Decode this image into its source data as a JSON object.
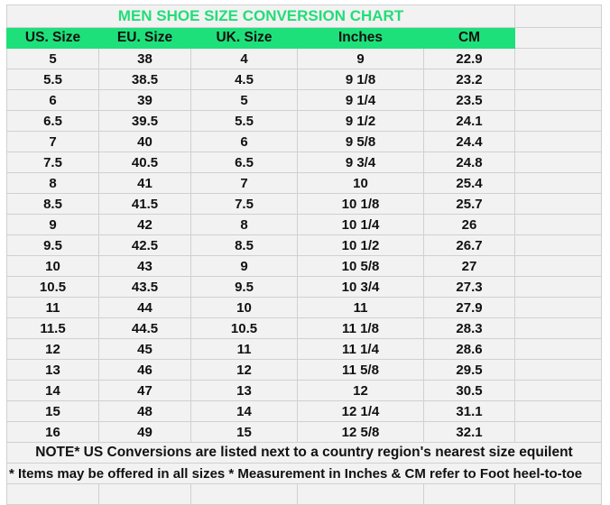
{
  "title": "MEN SHOE SIZE CONVERSION CHART",
  "colors": {
    "header_bg": "#1ee07a",
    "title_text": "#22dd77",
    "cell_bg": "#f2f2f2",
    "grid": "#d0d0d0"
  },
  "headers": [
    "US. Size",
    "EU. Size",
    "UK. Size",
    "Inches",
    "CM"
  ],
  "rows": [
    [
      "5",
      "38",
      "4",
      "9",
      "22.9"
    ],
    [
      "5.5",
      "38.5",
      "4.5",
      "9 1/8",
      "23.2"
    ],
    [
      "6",
      "39",
      "5",
      "9 1/4",
      "23.5"
    ],
    [
      "6.5",
      "39.5",
      "5.5",
      "9 1/2",
      "24.1"
    ],
    [
      "7",
      "40",
      "6",
      "9 5/8",
      "24.4"
    ],
    [
      "7.5",
      "40.5",
      "6.5",
      "9 3/4",
      "24.8"
    ],
    [
      "8",
      "41",
      "7",
      "10",
      "25.4"
    ],
    [
      "8.5",
      "41.5",
      "7.5",
      "10 1/8",
      "25.7"
    ],
    [
      "9",
      "42",
      "8",
      "10 1/4",
      "26"
    ],
    [
      "9.5",
      "42.5",
      "8.5",
      "10 1/2",
      "26.7"
    ],
    [
      "10",
      "43",
      "9",
      "10 5/8",
      "27"
    ],
    [
      "10.5",
      "43.5",
      "9.5",
      "10 3/4",
      "27.3"
    ],
    [
      "11",
      "44",
      "10",
      "11",
      "27.9"
    ],
    [
      "11.5",
      "44.5",
      "10.5",
      "11 1/8",
      "28.3"
    ],
    [
      "12",
      "45",
      "11",
      "11 1/4",
      "28.6"
    ],
    [
      "13",
      "46",
      "12",
      "11 5/8",
      "29.5"
    ],
    [
      "14",
      "47",
      "13",
      "12",
      "30.5"
    ],
    [
      "15",
      "48",
      "14",
      "12 1/4",
      "31.1"
    ],
    [
      "16",
      "49",
      "15",
      "12 5/8",
      "32.1"
    ]
  ],
  "note": "NOTE* US Conversions are listed next to a country region's nearest size equilent",
  "footnote": "* Items may be offered in all sizes * Measurement in Inches & CM refer to Foot heel-to-toe"
}
